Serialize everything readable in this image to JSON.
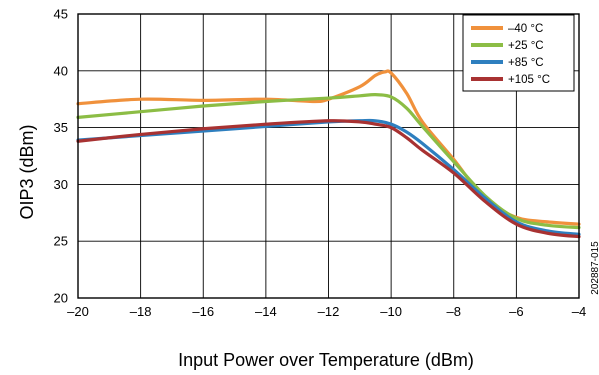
{
  "chart_data": {
    "type": "line",
    "xlabel": "Input Power over Temperature (dBm)",
    "ylabel": "OIP3 (dBm)",
    "xlim": [
      -20,
      -4
    ],
    "ylim": [
      20,
      45
    ],
    "xticks": [
      -20,
      -18,
      -16,
      -14,
      -12,
      -10,
      -8,
      -6,
      -4
    ],
    "yticks": [
      20,
      25,
      30,
      35,
      40,
      45
    ],
    "xtick_labels": [
      "–20",
      "–18",
      "–16",
      "–14",
      "–12",
      "–10",
      "–8",
      "–6",
      "–4"
    ],
    "ytick_labels": [
      "20",
      "25",
      "30",
      "35",
      "40",
      "45"
    ],
    "grid": true,
    "legend_position": "top-right",
    "figure_id": "202887-015",
    "series": [
      {
        "name": "–40 °C",
        "color": "#f0913c",
        "x": [
          -20,
          -18,
          -16,
          -14,
          -12.5,
          -12,
          -11,
          -10.5,
          -10.2,
          -10,
          -9.5,
          -9,
          -8,
          -7,
          -6,
          -5,
          -4
        ],
        "y": [
          37.1,
          37.5,
          37.4,
          37.5,
          37.3,
          37.5,
          38.6,
          39.6,
          39.9,
          39.8,
          38.0,
          35.5,
          32.2,
          28.7,
          27.1,
          26.7,
          26.5
        ]
      },
      {
        "name": "+25 °C",
        "color": "#8cbd45",
        "x": [
          -20,
          -18,
          -16,
          -14,
          -12,
          -11,
          -10.5,
          -10,
          -9.5,
          -9,
          -8,
          -7,
          -6,
          -5,
          -4
        ],
        "y": [
          35.9,
          36.4,
          36.9,
          37.3,
          37.6,
          37.8,
          37.9,
          37.7,
          36.7,
          35.1,
          32.0,
          29.0,
          27.0,
          26.4,
          26.2
        ]
      },
      {
        "name": "+85 °C",
        "color": "#2e7fbf",
        "x": [
          -20,
          -18,
          -16,
          -14,
          -12,
          -11,
          -10.5,
          -10,
          -9.5,
          -9,
          -8,
          -7,
          -6,
          -5,
          -4
        ],
        "y": [
          33.9,
          34.3,
          34.7,
          35.1,
          35.5,
          35.6,
          35.6,
          35.3,
          34.6,
          33.6,
          31.3,
          28.8,
          26.7,
          25.9,
          25.6
        ]
      },
      {
        "name": "+105 °C",
        "color": "#a83232",
        "x": [
          -20,
          -18,
          -16,
          -14,
          -12,
          -11,
          -10.5,
          -10,
          -9.5,
          -9,
          -8,
          -7,
          -6,
          -5,
          -4
        ],
        "y": [
          33.8,
          34.4,
          34.9,
          35.3,
          35.6,
          35.5,
          35.3,
          35.0,
          34.1,
          33.0,
          31.0,
          28.5,
          26.5,
          25.7,
          25.4
        ]
      }
    ]
  }
}
